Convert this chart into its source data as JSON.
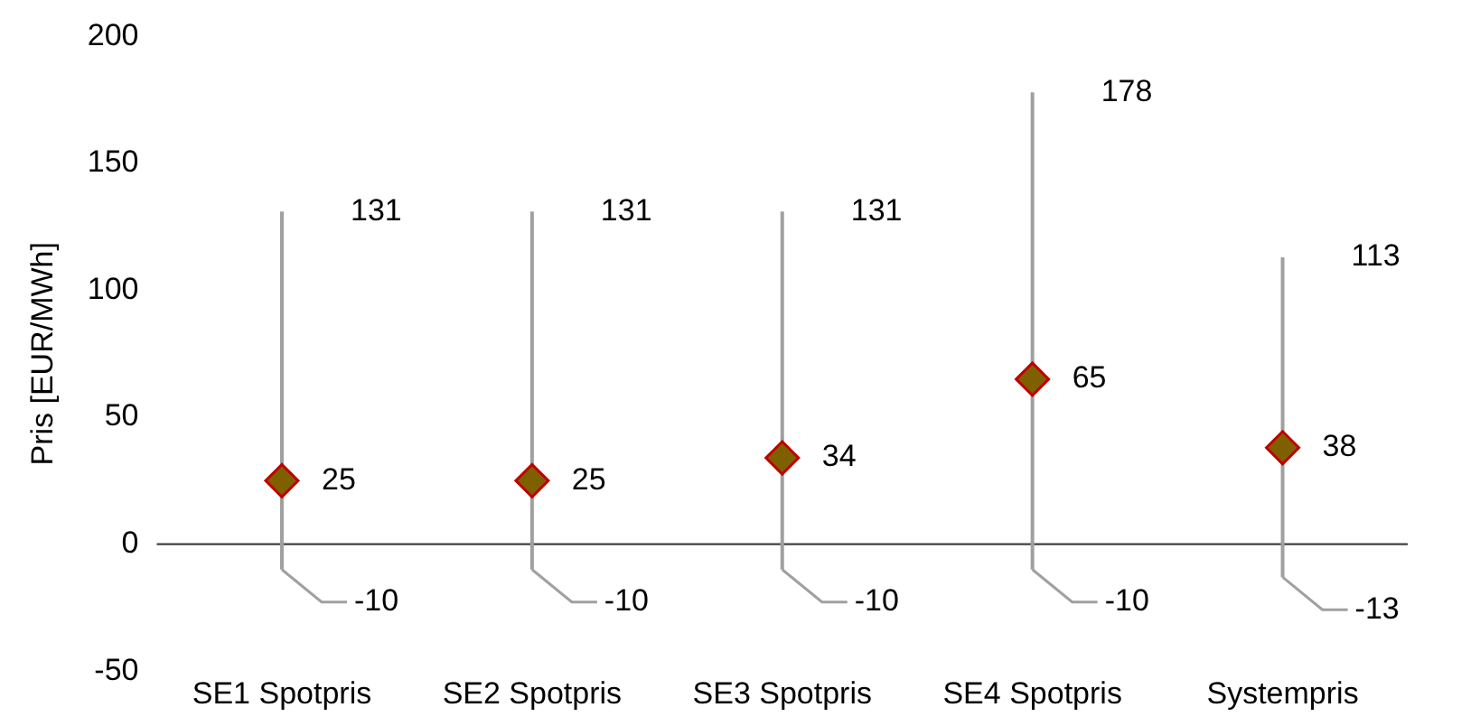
{
  "chart_data": {
    "type": "scatter",
    "ylabel": "Pris [EUR/MWh]",
    "categories": [
      "SE1 Spotpris",
      "SE2 Spotpris",
      "SE3 Spotpris",
      "SE4 Spotpris",
      "Systempris"
    ],
    "series": [
      {
        "color": "#7f6000",
        "values": [
          25,
          25,
          34,
          65,
          38
        ],
        "errors": [
          [
            -10,
            131
          ],
          [
            -10,
            131
          ],
          [
            -10,
            131
          ],
          [
            -10,
            178
          ],
          [
            -13,
            113
          ]
        ]
      }
    ],
    "data_labels": true,
    "annotations": [
      {
        "text": "131",
        "x": "SE1 Spotpris",
        "y": 131
      },
      {
        "text": "131",
        "x": "SE2 Spotpris",
        "y": 131
      },
      {
        "text": "131",
        "x": "SE3 Spotpris",
        "y": 131
      },
      {
        "text": "178",
        "x": "SE4 Spotpris",
        "y": 178
      },
      {
        "text": "113",
        "x": "Systempris",
        "y": 113
      },
      {
        "text": "-10",
        "x": "SE1 Spotpris",
        "y": -10
      },
      {
        "text": "-10",
        "x": "SE2 Spotpris",
        "y": -10
      },
      {
        "text": "-10",
        "x": "SE3 Spotpris",
        "y": -10
      },
      {
        "text": "-10",
        "x": "SE4 Spotpris",
        "y": -10
      },
      {
        "text": "-13",
        "x": "Systempris",
        "y": -13
      }
    ],
    "marker": "diamond",
    "grid": false,
    "legend": false,
    "ylim": [
      -50,
      200
    ],
    "yticks": [
      -50,
      0,
      50,
      100,
      150,
      200
    ]
  }
}
